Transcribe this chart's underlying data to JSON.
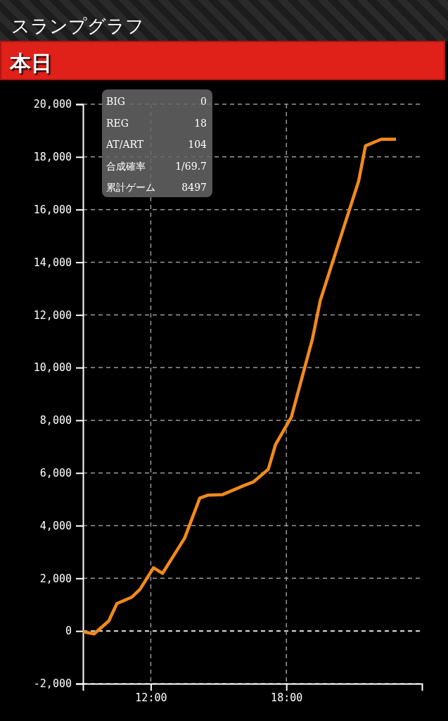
{
  "chart_data": {
    "type": "line",
    "title": "スランプグラフ",
    "subtitle": "本日",
    "x": [
      9.0,
      9.49,
      10.14,
      10.5,
      11.15,
      11.52,
      12.12,
      12.52,
      13.5,
      14.17,
      14.54,
      15.18,
      16.14,
      16.54,
      17.2,
      17.52,
      18.22,
      19.15,
      19.5,
      21.2,
      21.5,
      22.2,
      22.85
    ],
    "series": [
      {
        "color": "#f28a1c",
        "values": [
          -30,
          -110,
          380,
          1040,
          1280,
          1580,
          2400,
          2190,
          3530,
          5050,
          5160,
          5180,
          5530,
          5660,
          6140,
          7080,
          8120,
          11080,
          12550,
          17090,
          18420,
          18670,
          18670
        ]
      }
    ],
    "xlim": [
      9,
      24
    ],
    "xticks": [
      {
        "value": 12,
        "label": "12:00"
      },
      {
        "value": 18,
        "label": "18:00"
      }
    ],
    "ylim": [
      -2000,
      20000
    ],
    "yticks": [
      {
        "value": -2000,
        "label": "-2,000"
      },
      {
        "value": 0,
        "label": "0"
      },
      {
        "value": 2000,
        "label": "2,000"
      },
      {
        "value": 4000,
        "label": "4,000"
      },
      {
        "value": 6000,
        "label": "6,000"
      },
      {
        "value": 8000,
        "label": "8,000"
      },
      {
        "value": 10000,
        "label": "10,000"
      },
      {
        "value": 12000,
        "label": "12,000"
      },
      {
        "value": 14000,
        "label": "14,000"
      },
      {
        "value": 16000,
        "label": "16,000"
      },
      {
        "value": 18000,
        "label": "18,000"
      },
      {
        "value": 20000,
        "label": "20,000"
      }
    ],
    "grid": true,
    "marker": "none",
    "line_style": "solid",
    "ref_lines": [
      {
        "axis": "y",
        "value": 0,
        "color": "#dddddd",
        "line_style": "dashed"
      }
    ],
    "annotations": [
      "BIG",
      "0",
      "REG",
      "18",
      "AT/ART",
      "104",
      "合成確率",
      "1/69.7",
      "累計ゲーム",
      "8497"
    ]
  }
}
